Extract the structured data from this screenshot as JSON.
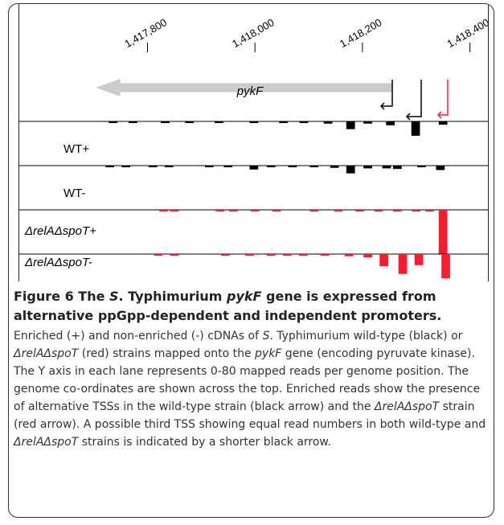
{
  "figure": {
    "xlim": [
      1417560,
      1418435
    ],
    "ylim": [
      0,
      80
    ],
    "xticks": [
      {
        "value": 1417800,
        "label": "1,417,800"
      },
      {
        "value": 1418000,
        "label": "1,418,000"
      },
      {
        "value": 1418200,
        "label": "1,418,200"
      },
      {
        "value": 1418400,
        "label": "1,418,400"
      }
    ],
    "gene": "pykF",
    "lanes": [
      {
        "name": "WT+",
        "color": "#000000",
        "positions": [
          1417736,
          1417773,
          1417833,
          1417878,
          1417933,
          1417998,
          1418053,
          1418091,
          1418136,
          1418178,
          1418210,
          1418252,
          1418299,
          1418350
        ],
        "values": [
          3,
          3,
          3,
          3,
          3,
          3,
          3,
          3,
          4,
          14,
          4,
          7,
          26,
          6
        ]
      },
      {
        "name": "WT-",
        "color": "#000000",
        "positions": [
          1417730,
          1417760,
          1417810,
          1417840,
          1417915,
          1417950,
          1417998,
          1418030,
          1418070,
          1418110,
          1418148,
          1418178,
          1418210,
          1418245,
          1418265,
          1418310,
          1418345
        ],
        "values": [
          3,
          3,
          3,
          3,
          3,
          3,
          7,
          3,
          3,
          3,
          4,
          14,
          5,
          5,
          6,
          3,
          8
        ]
      },
      {
        "name": "ΔrelAΔspoT+",
        "color": "#ff1a2e",
        "positions": [
          1417830,
          1417850,
          1417935,
          1417960,
          1418000,
          1418040,
          1418110,
          1418155,
          1418195,
          1418230,
          1418265,
          1418300,
          1418325,
          1418350
        ],
        "values": [
          3,
          3,
          3,
          3,
          3,
          3,
          3,
          3,
          3,
          3,
          3,
          3,
          3,
          80
        ]
      },
      {
        "name": "ΔrelAΔspoT-",
        "color": "#ff1a2e",
        "positions": [
          1417820,
          1417850,
          1417945,
          1417990,
          1418030,
          1418060,
          1418090,
          1418130,
          1418175,
          1418210,
          1418240,
          1418275,
          1418305,
          1418355
        ],
        "values": [
          3,
          3,
          3,
          3,
          3,
          3,
          3,
          3,
          4,
          6,
          22,
          36,
          20,
          44
        ]
      }
    ]
  },
  "caption": {
    "title": [
      "Figure 6 The ",
      "S",
      ". Typhimurium ",
      "pykF",
      " gene is expressed from alternative ppGpp-dependent and independent promoters",
      "."
    ],
    "body": [
      "Enriched (+) and non-enriched (-) cDNAs of ",
      "S",
      ". Typhimurium wild-type (black) or ",
      "ΔrelAΔspoT",
      " (red) strains mapped onto the ",
      "pykF",
      " gene (encoding pyruvate kinase). The Y axis in each lane represents 0-80 mapped reads per genome position. The genome co-ordinates are shown across the top. Enriched reads show the presence of alternative TSSs in the wild-type strain (black arrow) and the ",
      "ΔrelAΔspoT",
      " strain (red arrow). A possible third TSS showing equal read numbers in both wild-type and ",
      "ΔrelAΔspoT",
      " strains is indicated by a shorter black arrow."
    ]
  }
}
